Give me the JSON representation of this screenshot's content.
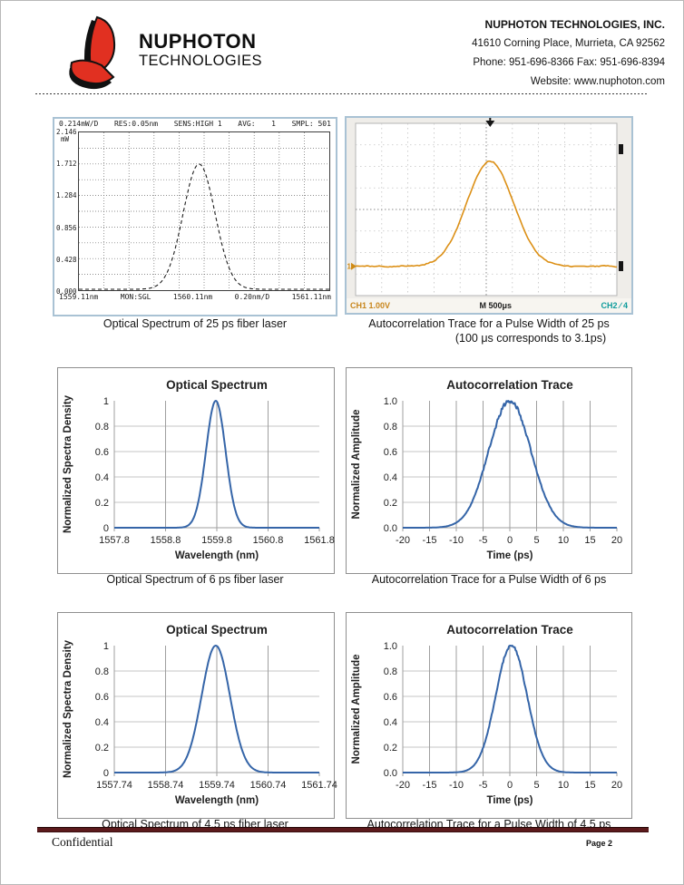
{
  "header": {
    "logo_line1": "NUPHOTON",
    "logo_line2": "TECHNOLOGIES",
    "company": "NUPHOTON TECHNOLOGIES, INC.",
    "address": "41610 Corning Place, Murrieta, CA 92562",
    "phone_fax": "Phone: 951-696-8366   Fax: 951-696-8394",
    "website": "Website: www.nuphoton.com",
    "logo_red": "#e13021",
    "logo_black": "#111111"
  },
  "osa": {
    "header_items": [
      "0.214mW/D",
      "RES:0.05nm",
      "SENS:HIGH 1",
      "AVG:",
      "1",
      "SMPL: 501"
    ],
    "y_labels": [
      "2.146",
      "1.712",
      "1.284",
      "0.856",
      "0.428",
      "0.000"
    ],
    "y_unit": "mW",
    "bottom_items": [
      "1559.11nm",
      "MON:SGL",
      "1560.11nm",
      "0.20nm/D",
      "1561.11nm"
    ]
  },
  "scope": {
    "ch1": "CH1  1.00V",
    "timebase": "M 500μs",
    "ch2": "CH2 ∕ 4",
    "marker": "1",
    "trace_color": "#dc9016"
  },
  "footer": {
    "confidential": "Confidential",
    "page": "Page 2"
  },
  "chart_data": [
    {
      "id": "osa25",
      "type": "line",
      "render": "osa",
      "title": "",
      "xlabel_unit": "nm",
      "xlim": [
        1559.11,
        1561.11
      ],
      "x_per_div_nm": 0.2,
      "ylim_mW": [
        0,
        2.146
      ],
      "series": [
        {
          "name": "25 ps optical spectrum",
          "model": "gaussian",
          "center_nm": 1560.07,
          "fwhm_nm": 0.3,
          "peak_mW": 1.712,
          "dashed": true
        }
      ],
      "caption": "Optical Spectrum of 25 ps fiber laser"
    },
    {
      "id": "scope25",
      "type": "line",
      "render": "scope",
      "time_per_div": "500 μs",
      "volts_per_div": "1.00 V",
      "divisions_x": 10,
      "divisions_y": 8,
      "series": [
        {
          "name": "25 ps autocorrelation",
          "model": "gaussian",
          "center_frac": 0.515,
          "fwhm_frac": 0.21,
          "baseline_frac": 0.17,
          "peak_frac": 0.78,
          "noise": 0.012
        }
      ],
      "caption_line1": "Autocorrelation Trace for a Pulse Width of 25 ps",
      "caption_line2": "(100 μs corresponds to 3.1ps)"
    },
    {
      "id": "spectrum6",
      "type": "line",
      "render": "excel",
      "title": "Optical Spectrum",
      "xlabel": "Wavelength (nm)",
      "ylabel": "Normalized Spectra Density",
      "xlim": [
        1557.8,
        1561.8
      ],
      "ylim": [
        0,
        1
      ],
      "x_ticks": [
        1557.8,
        1558.8,
        1559.8,
        1560.8,
        1561.8
      ],
      "x_tick_labels": [
        "1557.8",
        "1558.8",
        "1559.8",
        "1560.8",
        "1561.8"
      ],
      "y_ticks": [
        0,
        0.2,
        0.4,
        0.6,
        0.8,
        1
      ],
      "y_tick_labels": [
        "0",
        "0.2",
        "0.4",
        "0.6",
        "0.8",
        "1"
      ],
      "series": [
        {
          "name": "6 ps spectrum",
          "model": "gaussian",
          "center": 1559.78,
          "fwhm": 0.45,
          "amplitude": 1,
          "noise": 0
        }
      ],
      "sample_points": [
        [
          1557.8,
          0
        ],
        [
          1558.8,
          0
        ],
        [
          1559.3,
          0.043
        ],
        [
          1559.5,
          0.342
        ],
        [
          1559.65,
          0.793
        ],
        [
          1559.78,
          1.0
        ],
        [
          1559.9,
          0.821
        ],
        [
          1560.05,
          0.369
        ],
        [
          1560.3,
          0.025
        ],
        [
          1560.8,
          0
        ],
        [
          1561.8,
          0
        ]
      ],
      "line_color": "#3565a8",
      "caption": "Optical Spectrum of 6 ps fiber laser"
    },
    {
      "id": "autocorr6",
      "type": "line",
      "render": "excel",
      "title": "Autocorrelation Trace",
      "xlabel": "Time (ps)",
      "ylabel": "Normalized Amplitude",
      "xlim": [
        -20,
        20
      ],
      "ylim": [
        0,
        1
      ],
      "x_ticks": [
        -20,
        -15,
        -10,
        -5,
        0,
        5,
        10,
        15,
        20
      ],
      "x_tick_labels": [
        "-20",
        "-15",
        "-10",
        "-5",
        "0",
        "5",
        "10",
        "15",
        "20"
      ],
      "y_ticks": [
        0,
        0.2,
        0.4,
        0.6,
        0.8,
        1
      ],
      "y_tick_labels": [
        "0.0",
        "0.2",
        "0.4",
        "0.6",
        "0.8",
        "1.0"
      ],
      "series": [
        {
          "name": "6 ps autocorrelation",
          "model": "gaussian",
          "center": 0,
          "fwhm": 9.3,
          "amplitude": 1,
          "noise": 0.02
        }
      ],
      "sample_points": [
        [
          -20,
          0
        ],
        [
          -15,
          0.001
        ],
        [
          -10,
          0.041
        ],
        [
          -8,
          0.128
        ],
        [
          -6,
          0.315
        ],
        [
          -4,
          0.599
        ],
        [
          -2,
          0.88
        ],
        [
          0,
          1.0
        ],
        [
          2,
          0.88
        ],
        [
          4,
          0.599
        ],
        [
          6,
          0.315
        ],
        [
          8,
          0.128
        ],
        [
          10,
          0.041
        ],
        [
          15,
          0.001
        ],
        [
          20,
          0
        ]
      ],
      "line_color": "#3565a8",
      "caption": "Autocorrelation Trace for a Pulse Width of 6 ps"
    },
    {
      "id": "spectrum45",
      "type": "line",
      "render": "excel",
      "title": "Optical Spectrum",
      "xlabel": "Wavelength (nm)",
      "ylabel": "Normalized Spectra Density",
      "xlim": [
        1557.74,
        1561.74
      ],
      "ylim": [
        0,
        1
      ],
      "x_ticks": [
        1557.74,
        1558.74,
        1559.74,
        1560.74,
        1561.74
      ],
      "x_tick_labels": [
        "1557.74",
        "1558.74",
        "1559.74",
        "1560.74",
        "1561.74"
      ],
      "y_ticks": [
        0,
        0.2,
        0.4,
        0.6,
        0.8,
        1
      ],
      "y_tick_labels": [
        "0",
        "0.2",
        "0.4",
        "0.6",
        "0.8",
        "1"
      ],
      "series": [
        {
          "name": "4.5 ps spectrum",
          "model": "gaussian",
          "center": 1559.72,
          "fwhm": 0.65,
          "amplitude": 1,
          "noise": 0
        }
      ],
      "sample_points": [
        [
          1557.74,
          0
        ],
        [
          1558.74,
          0.002
        ],
        [
          1559.24,
          0.22
        ],
        [
          1559.49,
          0.707
        ],
        [
          1559.72,
          1.0
        ],
        [
          1559.97,
          0.664
        ],
        [
          1560.22,
          0.194
        ],
        [
          1560.47,
          0.025
        ],
        [
          1560.74,
          0.001
        ],
        [
          1561.74,
          0
        ]
      ],
      "line_color": "#3565a8",
      "caption": "Optical Spectrum of 4.5 ps fiber laser"
    },
    {
      "id": "autocorr45",
      "type": "line",
      "render": "excel",
      "title": "Autocorrelation Trace",
      "xlabel": "Time (ps)",
      "ylabel": "Normalized Amplitude",
      "xlim": [
        -20,
        20
      ],
      "ylim": [
        0,
        1
      ],
      "x_ticks": [
        -20,
        -15,
        -10,
        -5,
        0,
        5,
        10,
        15,
        20
      ],
      "x_tick_labels": [
        "-20",
        "-15",
        "-10",
        "-5",
        "0",
        "5",
        "10",
        "15",
        "20"
      ],
      "y_ticks": [
        0,
        0.2,
        0.4,
        0.6,
        0.8,
        1
      ],
      "y_tick_labels": [
        "0.0",
        "0.2",
        "0.4",
        "0.6",
        "0.8",
        "1.0"
      ],
      "series": [
        {
          "name": "4.5 ps autocorrelation",
          "model": "gaussian",
          "center": 0.3,
          "fwhm": 6.9,
          "amplitude": 1,
          "noise": 0.012
        }
      ],
      "sample_points": [
        [
          -20,
          0
        ],
        [
          -15,
          0
        ],
        [
          -10,
          0.002
        ],
        [
          -8,
          0.018
        ],
        [
          -6,
          0.099
        ],
        [
          -4,
          0.341
        ],
        [
          -2,
          0.735
        ],
        [
          0,
          0.995
        ],
        [
          0.3,
          1.0
        ],
        [
          2,
          0.845
        ],
        [
          4,
          0.451
        ],
        [
          6,
          0.151
        ],
        [
          8,
          0.032
        ],
        [
          10,
          0.004
        ],
        [
          15,
          0
        ],
        [
          20,
          0
        ]
      ],
      "line_color": "#3565a8",
      "caption": "Autocorrelation Trace for a Pulse Width of 4.5 ps"
    }
  ]
}
